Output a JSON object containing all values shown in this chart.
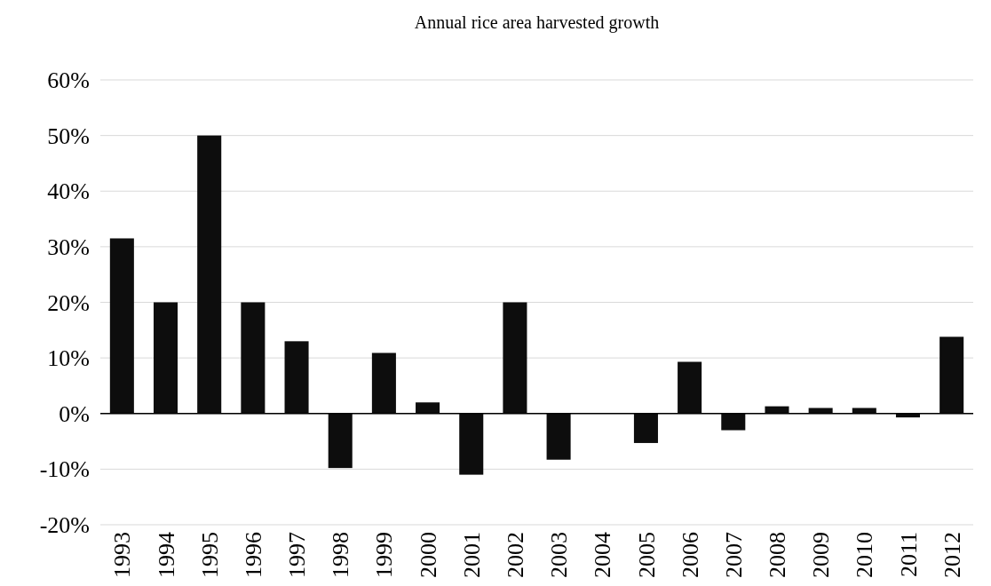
{
  "chart_data": {
    "type": "bar",
    "title": "Annual rice area harvested growth",
    "categories": [
      "1993",
      "1994",
      "1995",
      "1996",
      "1997",
      "1998",
      "1999",
      "2000",
      "2001",
      "2002",
      "2003",
      "2004",
      "2005",
      "2006",
      "2007",
      "2008",
      "2009",
      "2010",
      "2011",
      "2012"
    ],
    "values": [
      31.5,
      20,
      50,
      20,
      13,
      -9.8,
      10.9,
      2,
      -11,
      20,
      -8.3,
      0,
      -5.3,
      9.3,
      -3,
      1.3,
      1,
      1,
      -0.7,
      13.8
    ],
    "color": "#0d0d0d",
    "ylim": [
      -20,
      60
    ],
    "yticks": [
      {
        "value": -20,
        "label": "-20%"
      },
      {
        "value": -10,
        "label": "-10%"
      },
      {
        "value": 0,
        "label": "0%"
      },
      {
        "value": 10,
        "label": "10%"
      },
      {
        "value": 20,
        "label": "20%"
      },
      {
        "value": 30,
        "label": "30%"
      },
      {
        "value": 40,
        "label": "40%"
      },
      {
        "value": 50,
        "label": "50%"
      },
      {
        "value": 60,
        "label": "60%"
      }
    ],
    "grid": "y"
  }
}
